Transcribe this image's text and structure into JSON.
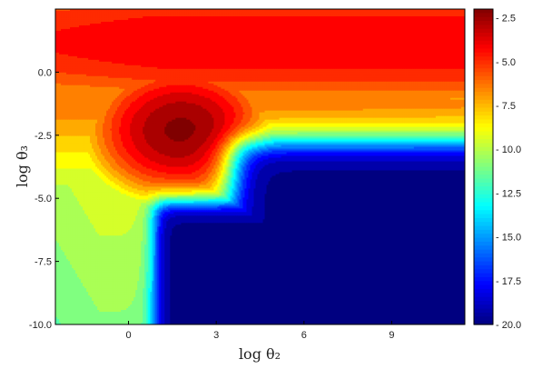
{
  "chart_data": {
    "type": "contour",
    "title": "",
    "xlabel": "log θ₂",
    "ylabel": "log θ₃",
    "xlim": [
      -2.5,
      11.5
    ],
    "ylim": [
      -10.0,
      2.5
    ],
    "x_ticks": [
      {
        "value": 0,
        "label": "0"
      },
      {
        "value": 3,
        "label": "3"
      },
      {
        "value": 6,
        "label": "6"
      },
      {
        "value": 9,
        "label": "9"
      }
    ],
    "y_ticks": [
      {
        "value": 0.0,
        "label": "0.0"
      },
      {
        "value": -2.5,
        "label": "-2.5"
      },
      {
        "value": -5.0,
        "label": "-5.0"
      },
      {
        "value": -7.5,
        "label": "-7.5"
      },
      {
        "value": -10.0,
        "label": "-10.0"
      }
    ],
    "colorbar": {
      "colormap": "jet (reversed)",
      "range": [
        -20.0,
        -2.0
      ],
      "ticks": [
        {
          "value": -2.5,
          "label": "- 2.5"
        },
        {
          "value": -5.0,
          "label": "- 5.0"
        },
        {
          "value": -7.5,
          "label": "- 7.5"
        },
        {
          "value": -10.0,
          "label": "- 10.0"
        },
        {
          "value": -12.5,
          "label": "- 12.5"
        },
        {
          "value": -15.0,
          "label": "- 15.0"
        },
        {
          "value": -17.5,
          "label": "- 17.5"
        },
        {
          "value": -20.0,
          "label": "- 20.0"
        }
      ]
    },
    "maximum": {
      "x": 1.8,
      "y": -2.3,
      "value": -2.2
    },
    "lower_right_plateau": {
      "x_min": 3.6,
      "y_max": -2.8,
      "value": -20.0
    },
    "grid": false,
    "legend": "none"
  }
}
